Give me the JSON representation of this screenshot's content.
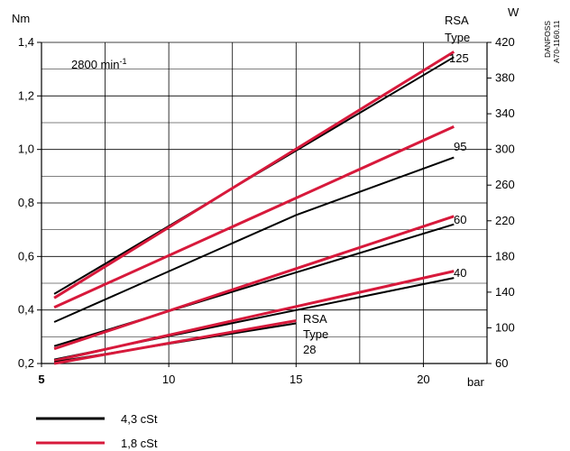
{
  "chart_data": {
    "type": "line",
    "speed_label": "2800 min",
    "speed_exponent": "-1",
    "y_left": {
      "label": "Nm",
      "lim": [
        0.2,
        1.4
      ],
      "ticks": [
        "0,2",
        "0,4",
        "0,6",
        "0,8",
        "1,0",
        "1,2",
        "1,4"
      ],
      "values": [
        0.2,
        0.4,
        0.6,
        0.8,
        1.0,
        1.2,
        1.4
      ]
    },
    "y_right": {
      "label": "W",
      "lim": [
        60,
        420
      ],
      "ticks": [
        "60",
        "100",
        "140",
        "180",
        "220",
        "260",
        "300",
        "340",
        "380",
        "420"
      ],
      "values": [
        60,
        100,
        140,
        180,
        220,
        260,
        300,
        340,
        380,
        420
      ]
    },
    "x": {
      "label": "bar",
      "lim": [
        5,
        22.5
      ],
      "ticks": [
        "5",
        "10",
        "15",
        "20"
      ],
      "values": [
        5,
        10,
        15,
        20
      ]
    },
    "grid": true,
    "series_colors": {
      "4,3 cSt": "#000000",
      "1,8 cSt": "#d7193b"
    },
    "series": [
      {
        "type_label": "125",
        "viscosity": "4,3 cSt",
        "x": [
          5.5,
          21.2
        ],
        "y": [
          0.46,
          1.345
        ]
      },
      {
        "type_label": "125",
        "viscosity": "1,8 cSt",
        "x": [
          5.5,
          21.2
        ],
        "y": [
          0.445,
          1.365
        ]
      },
      {
        "type_label": "95",
        "viscosity": "4,3 cSt",
        "x": [
          5.5,
          15.0,
          21.2
        ],
        "y": [
          0.355,
          0.755,
          0.97
        ]
      },
      {
        "type_label": "95",
        "viscosity": "1,8 cSt",
        "x": [
          5.5,
          21.2
        ],
        "y": [
          0.41,
          1.085
        ]
      },
      {
        "type_label": "60",
        "viscosity": "4,3 cSt",
        "x": [
          5.5,
          21.2
        ],
        "y": [
          0.265,
          0.72
        ]
      },
      {
        "type_label": "60",
        "viscosity": "1,8 cSt",
        "x": [
          5.5,
          21.2
        ],
        "y": [
          0.255,
          0.75
        ]
      },
      {
        "type_label": "40",
        "viscosity": "4,3 cSt",
        "x": [
          5.5,
          21.2
        ],
        "y": [
          0.215,
          0.52
        ]
      },
      {
        "type_label": "40",
        "viscosity": "1,8 cSt",
        "x": [
          5.5,
          21.2
        ],
        "y": [
          0.21,
          0.545
        ]
      },
      {
        "type_label": "28",
        "viscosity": "4,3 cSt",
        "x": [
          5.5,
          15.0
        ],
        "y": [
          0.205,
          0.35
        ]
      },
      {
        "type_label": "28",
        "viscosity": "1,8 cSt",
        "x": [
          5.5,
          15.0
        ],
        "y": [
          0.2,
          0.36
        ]
      }
    ],
    "annotations": {
      "rsa_top": "RSA",
      "type_top": "Type",
      "label_125": "125",
      "label_95": "95",
      "label_60": "60",
      "label_40": "40",
      "rsa_bottom": "RSA",
      "type_bottom": "Type",
      "label_28": "28",
      "code_line1": "DANFOSS",
      "code_line2": "A70-1160.11"
    },
    "legend": [
      {
        "label": "4,3 cSt",
        "color": "#000000"
      },
      {
        "label": "1,8 cSt",
        "color": "#d7193b"
      }
    ]
  }
}
